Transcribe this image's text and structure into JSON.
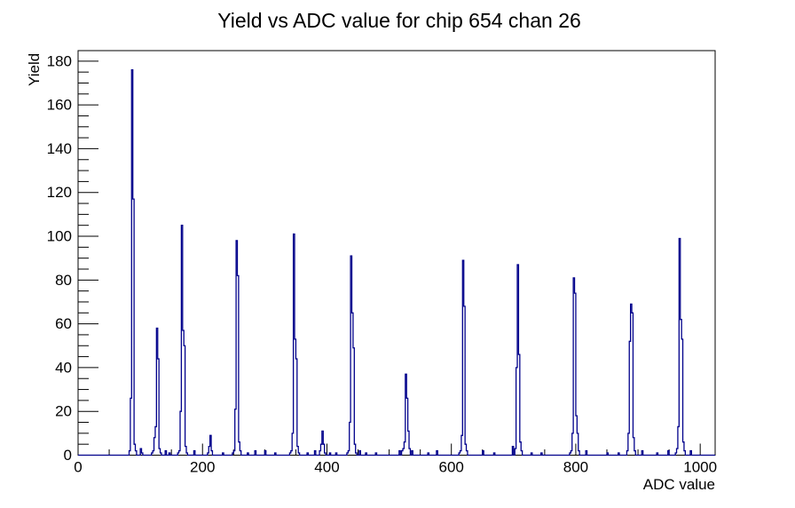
{
  "title": "Yield vs ADC value for chip 654 chan 26",
  "chart_data": {
    "type": "bar",
    "subtype": "histogram-step-line",
    "title": "Yield vs ADC value for chip 654 chan 26",
    "xlabel": "ADC value",
    "ylabel": "Yield",
    "xlim": [
      0,
      1024
    ],
    "ylim": [
      0,
      184.8
    ],
    "x_major_ticks": [
      0,
      200,
      400,
      600,
      800,
      1000
    ],
    "x_minor_step": 50,
    "y_major_ticks": [
      0,
      20,
      40,
      60,
      80,
      100,
      120,
      140,
      160,
      180
    ],
    "y_minor_step": 5,
    "grid": "off",
    "legend": "none",
    "line_color": "#00008b",
    "axis_color": "#000000",
    "bin_width": 2,
    "peaks": [
      {
        "adc": 86,
        "yield": 176
      },
      {
        "adc": 126,
        "yield": 58
      },
      {
        "adc": 166,
        "yield": 105
      },
      {
        "adc": 212,
        "yield": 9
      },
      {
        "adc": 254,
        "yield": 98
      },
      {
        "adc": 346,
        "yield": 101
      },
      {
        "adc": 392,
        "yield": 11
      },
      {
        "adc": 438,
        "yield": 91
      },
      {
        "adc": 526,
        "yield": 37
      },
      {
        "adc": 618,
        "yield": 89
      },
      {
        "adc": 706,
        "yield": 87
      },
      {
        "adc": 796,
        "yield": 81
      },
      {
        "adc": 888,
        "yield": 69
      },
      {
        "adc": 966,
        "yield": 99
      }
    ],
    "bins": [
      [
        82,
        2
      ],
      [
        84,
        26
      ],
      [
        86,
        176
      ],
      [
        88,
        117
      ],
      [
        90,
        5
      ],
      [
        92,
        2
      ],
      [
        100,
        3
      ],
      [
        102,
        1
      ],
      [
        118,
        1
      ],
      [
        120,
        2
      ],
      [
        122,
        8
      ],
      [
        124,
        13
      ],
      [
        126,
        58
      ],
      [
        128,
        44
      ],
      [
        130,
        3
      ],
      [
        132,
        1
      ],
      [
        140,
        2
      ],
      [
        146,
        1
      ],
      [
        160,
        1
      ],
      [
        162,
        2
      ],
      [
        164,
        20
      ],
      [
        166,
        105
      ],
      [
        168,
        57
      ],
      [
        170,
        50
      ],
      [
        172,
        4
      ],
      [
        174,
        1
      ],
      [
        186,
        2
      ],
      [
        208,
        1
      ],
      [
        210,
        4
      ],
      [
        212,
        9
      ],
      [
        214,
        2
      ],
      [
        232,
        1
      ],
      [
        248,
        1
      ],
      [
        250,
        2
      ],
      [
        252,
        21
      ],
      [
        254,
        98
      ],
      [
        256,
        82
      ],
      [
        258,
        6
      ],
      [
        260,
        2
      ],
      [
        272,
        1
      ],
      [
        284,
        2
      ],
      [
        300,
        2
      ],
      [
        316,
        1
      ],
      [
        340,
        1
      ],
      [
        342,
        2
      ],
      [
        344,
        10
      ],
      [
        346,
        101
      ],
      [
        348,
        53
      ],
      [
        350,
        44
      ],
      [
        352,
        4
      ],
      [
        354,
        1
      ],
      [
        368,
        1
      ],
      [
        380,
        2
      ],
      [
        388,
        2
      ],
      [
        390,
        5
      ],
      [
        392,
        11
      ],
      [
        394,
        5
      ],
      [
        396,
        1
      ],
      [
        404,
        1
      ],
      [
        414,
        1
      ],
      [
        432,
        1
      ],
      [
        434,
        2
      ],
      [
        436,
        15
      ],
      [
        438,
        91
      ],
      [
        440,
        65
      ],
      [
        442,
        49
      ],
      [
        444,
        5
      ],
      [
        446,
        1
      ],
      [
        452,
        2
      ],
      [
        462,
        1
      ],
      [
        478,
        1
      ],
      [
        516,
        2
      ],
      [
        520,
        2
      ],
      [
        522,
        3
      ],
      [
        524,
        6
      ],
      [
        526,
        37
      ],
      [
        528,
        26
      ],
      [
        530,
        11
      ],
      [
        532,
        3
      ],
      [
        536,
        2
      ],
      [
        562,
        1
      ],
      [
        576,
        2
      ],
      [
        612,
        1
      ],
      [
        614,
        2
      ],
      [
        616,
        9
      ],
      [
        618,
        89
      ],
      [
        620,
        68
      ],
      [
        622,
        5
      ],
      [
        624,
        2
      ],
      [
        650,
        2
      ],
      [
        668,
        1
      ],
      [
        698,
        4
      ],
      [
        702,
        3
      ],
      [
        704,
        40
      ],
      [
        706,
        87
      ],
      [
        708,
        46
      ],
      [
        710,
        6
      ],
      [
        712,
        2
      ],
      [
        728,
        1
      ],
      [
        744,
        1
      ],
      [
        790,
        1
      ],
      [
        792,
        2
      ],
      [
        794,
        10
      ],
      [
        796,
        81
      ],
      [
        798,
        74
      ],
      [
        800,
        18
      ],
      [
        802,
        10
      ],
      [
        804,
        2
      ],
      [
        816,
        2
      ],
      [
        850,
        1
      ],
      [
        868,
        1
      ],
      [
        882,
        2
      ],
      [
        884,
        10
      ],
      [
        886,
        52
      ],
      [
        888,
        69
      ],
      [
        890,
        65
      ],
      [
        892,
        8
      ],
      [
        894,
        2
      ],
      [
        906,
        2
      ],
      [
        930,
        1
      ],
      [
        948,
        2
      ],
      [
        960,
        1
      ],
      [
        962,
        3
      ],
      [
        964,
        13
      ],
      [
        966,
        99
      ],
      [
        968,
        62
      ],
      [
        970,
        53
      ],
      [
        972,
        6
      ],
      [
        974,
        2
      ],
      [
        984,
        2
      ]
    ]
  }
}
